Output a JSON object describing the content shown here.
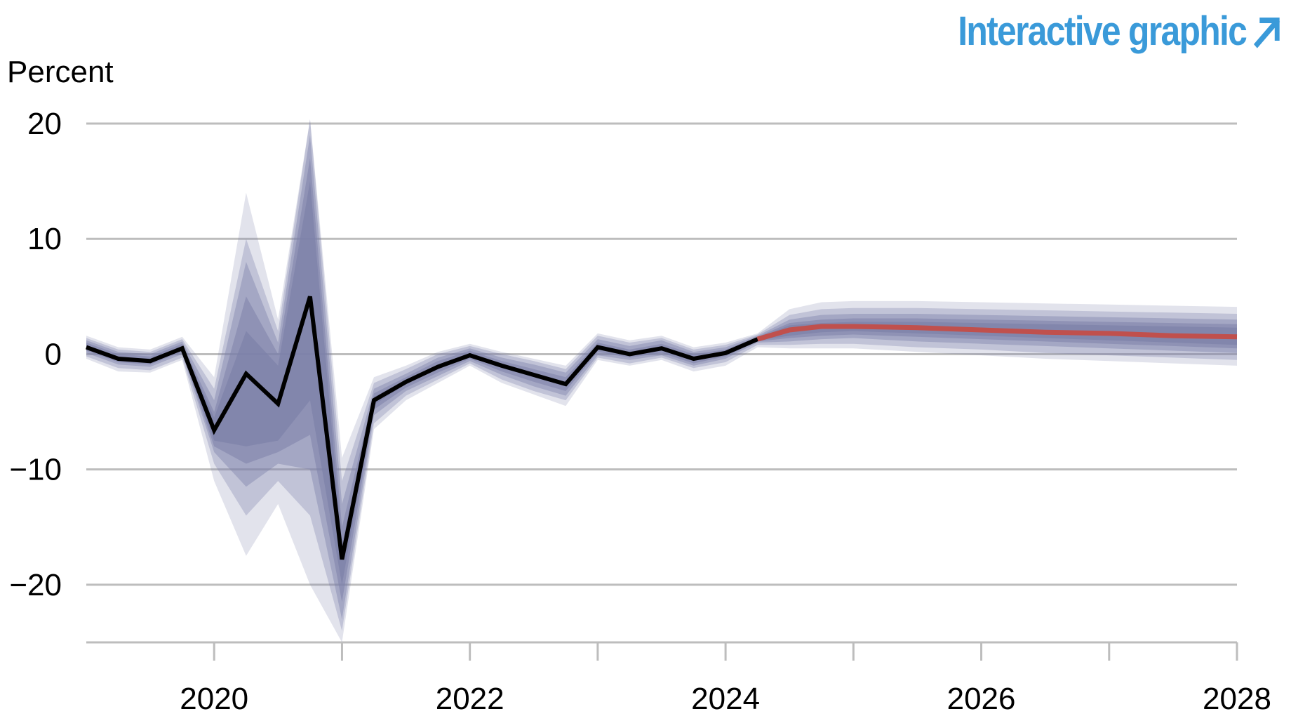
{
  "header": {
    "link_label": "Interactive graphic",
    "link_icon": "arrow-up-right-icon",
    "link_color": "#3a9ad9"
  },
  "chart_data": {
    "type": "area",
    "ylabel": "Percent",
    "ylim": [
      -25,
      20
    ],
    "xlim": [
      2019.0,
      2028.0
    ],
    "y_ticks": [
      20,
      10,
      0,
      -10,
      -20
    ],
    "y_tick_labels": [
      "20",
      "10",
      "0",
      "−10",
      "−20"
    ],
    "x_ticks": [
      2020,
      2021,
      2022,
      2023,
      2024,
      2025,
      2026,
      2027,
      2028
    ],
    "x_tick_labels": [
      "2020",
      "",
      "2022",
      "",
      "2024",
      "",
      "2026",
      "",
      "2028"
    ],
    "grid": "horizontal",
    "colors": {
      "history": "#000000",
      "forecast": "#c0504d",
      "band": "#7d81aa",
      "grid": "#bdbdbd"
    },
    "series": [
      {
        "role": "history",
        "x": [
          2019.0,
          2019.25,
          2019.5,
          2019.75,
          2020.0,
          2020.25,
          2020.5,
          2020.75,
          2021.0,
          2021.25,
          2021.5,
          2021.75,
          2022.0,
          2022.25,
          2022.5,
          2022.75,
          2023.0,
          2023.25,
          2023.5,
          2023.75,
          2024.0,
          2024.25
        ],
        "values": [
          0.6,
          -0.4,
          -0.6,
          0.5,
          -6.6,
          -1.7,
          -4.3,
          5.0,
          -17.8,
          -4.0,
          -2.4,
          -1.1,
          -0.1,
          -1.0,
          -1.8,
          -2.6,
          0.6,
          0.0,
          0.5,
          -0.4,
          0.1,
          1.3
        ]
      },
      {
        "role": "forecast",
        "x": [
          2024.25,
          2024.5,
          2024.75,
          2025.0,
          2025.5,
          2026.0,
          2026.5,
          2027.0,
          2027.5,
          2028.0
        ],
        "values": [
          1.3,
          2.1,
          2.4,
          2.4,
          2.3,
          2.1,
          1.9,
          1.8,
          1.6,
          1.5
        ]
      }
    ],
    "bands": {
      "x": [
        2019.0,
        2019.25,
        2019.5,
        2019.75,
        2020.0,
        2020.25,
        2020.5,
        2020.75,
        2021.0,
        2021.25,
        2021.5,
        2021.75,
        2022.0,
        2022.25,
        2022.5,
        2022.75,
        2023.0,
        2023.25,
        2023.5,
        2023.75,
        2024.0,
        2024.25,
        2024.5,
        2024.75,
        2025.0,
        2025.5,
        2026.0,
        2026.5,
        2027.0,
        2027.5,
        2028.0
      ],
      "levels": [
        {
          "opacity": 0.22,
          "lower": [
            -0.4,
            -1.5,
            -1.6,
            -0.5,
            -11,
            -17.5,
            -13,
            -20,
            -25,
            -6.5,
            -4,
            -2.5,
            -1,
            -2.5,
            -3.5,
            -4.5,
            -0.5,
            -1,
            -0.5,
            -1.5,
            -1,
            0.6,
            0.5,
            0.5,
            0.5,
            0.2,
            -0.1,
            -0.4,
            -0.6,
            -0.8,
            -1.0
          ],
          "upper": [
            1.6,
            0.6,
            0.4,
            1.5,
            -2,
            14,
            3,
            22,
            -9,
            -2,
            -1,
            0.2,
            0.9,
            0.2,
            -0.4,
            -1.0,
            1.8,
            1.2,
            1.6,
            0.6,
            1.0,
            1.8,
            3.9,
            4.5,
            4.6,
            4.6,
            4.5,
            4.4,
            4.3,
            4.2,
            4.1
          ]
        },
        {
          "opacity": 0.32,
          "lower": [
            -0.2,
            -1.2,
            -1.4,
            -0.3,
            -9.5,
            -14,
            -11,
            -14,
            -24,
            -6,
            -3.6,
            -2.2,
            -0.8,
            -2.2,
            -3.2,
            -4,
            -0.3,
            -0.8,
            -0.3,
            -1.2,
            -0.7,
            0.8,
            0.8,
            0.9,
            0.9,
            0.6,
            0.4,
            0.1,
            -0.1,
            -0.3,
            -0.5
          ],
          "upper": [
            1.4,
            0.4,
            0.2,
            1.3,
            -3,
            10,
            2,
            20.5,
            -11,
            -2.5,
            -1.3,
            0,
            0.7,
            0,
            -0.6,
            -1.3,
            1.6,
            1.0,
            1.4,
            0.4,
            0.8,
            1.7,
            3.4,
            3.9,
            4.0,
            4.0,
            3.9,
            3.8,
            3.7,
            3.6,
            3.5
          ]
        },
        {
          "opacity": 0.42,
          "lower": [
            0.1,
            -0.9,
            -1.1,
            0,
            -8.5,
            -11.5,
            -9.5,
            -10,
            -23,
            -5.3,
            -3.2,
            -1.9,
            -0.6,
            -1.8,
            -2.8,
            -3.6,
            -0.1,
            -0.5,
            -0.1,
            -1.0,
            -0.4,
            1.0,
            1.1,
            1.3,
            1.4,
            1.1,
            0.9,
            0.7,
            0.5,
            0.3,
            0.1
          ],
          "upper": [
            1.2,
            0.2,
            0,
            1.1,
            -4,
            8,
            1,
            19,
            -13,
            -3,
            -1.7,
            -0.3,
            0.5,
            -0.3,
            -0.9,
            -1.6,
            1.3,
            0.7,
            1.2,
            0.2,
            0.6,
            1.6,
            3.0,
            3.4,
            3.5,
            3.5,
            3.4,
            3.3,
            3.2,
            3.1,
            3.0
          ]
        },
        {
          "opacity": 0.55,
          "lower": [
            0.3,
            -0.7,
            -0.9,
            0.2,
            -8,
            -9.5,
            -8.5,
            -7,
            -21.5,
            -4.8,
            -2.9,
            -1.6,
            -0.4,
            -1.5,
            -2.4,
            -3.2,
            0.2,
            -0.3,
            0.1,
            -0.8,
            -0.2,
            1.1,
            1.4,
            1.6,
            1.7,
            1.5,
            1.3,
            1.1,
            0.9,
            0.7,
            0.5
          ],
          "upper": [
            1.0,
            0,
            -0.2,
            0.9,
            -5,
            5,
            0,
            17,
            -15,
            -3.4,
            -2.0,
            -0.6,
            0.3,
            -0.6,
            -1.3,
            -2.0,
            1.0,
            0.4,
            0.9,
            0,
            0.4,
            1.5,
            2.7,
            3.0,
            3.1,
            3.1,
            3.0,
            2.9,
            2.8,
            2.7,
            2.6
          ]
        },
        {
          "opacity": 0.75,
          "lower": [
            0.5,
            -0.5,
            -0.7,
            0.4,
            -7.5,
            -8,
            -7.5,
            -4,
            -20,
            -4.4,
            -2.6,
            -1.3,
            -0.2,
            -1.2,
            -2.0,
            -2.8,
            0.4,
            -0.1,
            0.3,
            -0.6,
            0,
            1.2,
            1.6,
            1.9,
            2.0,
            1.8,
            1.6,
            1.4,
            1.2,
            1.0,
            0.8
          ],
          "upper": [
            0.8,
            -0.2,
            -0.4,
            0.7,
            -5.5,
            2,
            -1,
            15,
            -16.5,
            -3.7,
            -2.2,
            -0.9,
            0.1,
            -0.9,
            -1.6,
            -2.4,
            0.8,
            0.2,
            0.7,
            -0.2,
            0.2,
            1.4,
            2.5,
            2.7,
            2.8,
            2.8,
            2.7,
            2.6,
            2.5,
            2.4,
            2.3
          ]
        }
      ]
    }
  }
}
